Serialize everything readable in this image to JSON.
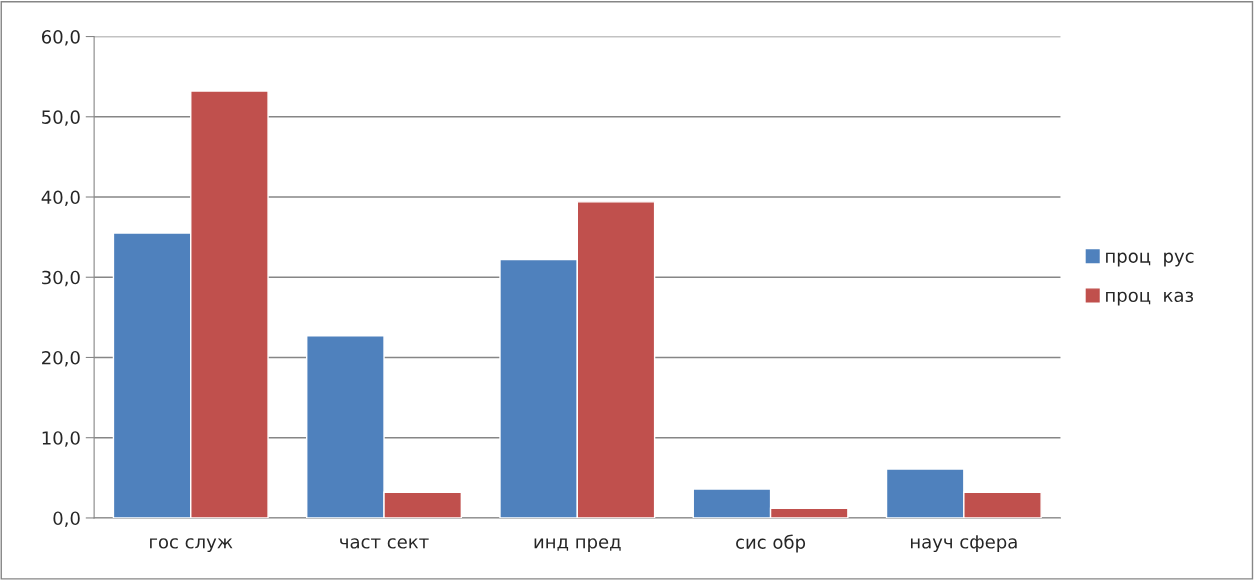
{
  "chart_data": {
    "type": "bar",
    "categories": [
      "гос служ",
      "част сект",
      "инд пред",
      "сис обр",
      "науч сфера"
    ],
    "series": [
      {
        "name": "проц  рус",
        "color": "#4f81bd",
        "values": [
          35.5,
          22.7,
          32.2,
          3.6,
          6.1
        ]
      },
      {
        "name": "проц  каз",
        "color": "#c0504d",
        "values": [
          53.2,
          3.2,
          39.4,
          1.2,
          3.2
        ]
      }
    ],
    "ylim": [
      0,
      60
    ],
    "yticks": [
      {
        "value": 0,
        "label": "0,0"
      },
      {
        "value": 10,
        "label": "10,0"
      },
      {
        "value": 20,
        "label": "20,0"
      },
      {
        "value": 30,
        "label": "30,0"
      },
      {
        "value": 40,
        "label": "40,0"
      },
      {
        "value": 50,
        "label": "50,0"
      },
      {
        "value": 60,
        "label": "60,0"
      }
    ],
    "grid": "y",
    "legend": "right"
  }
}
